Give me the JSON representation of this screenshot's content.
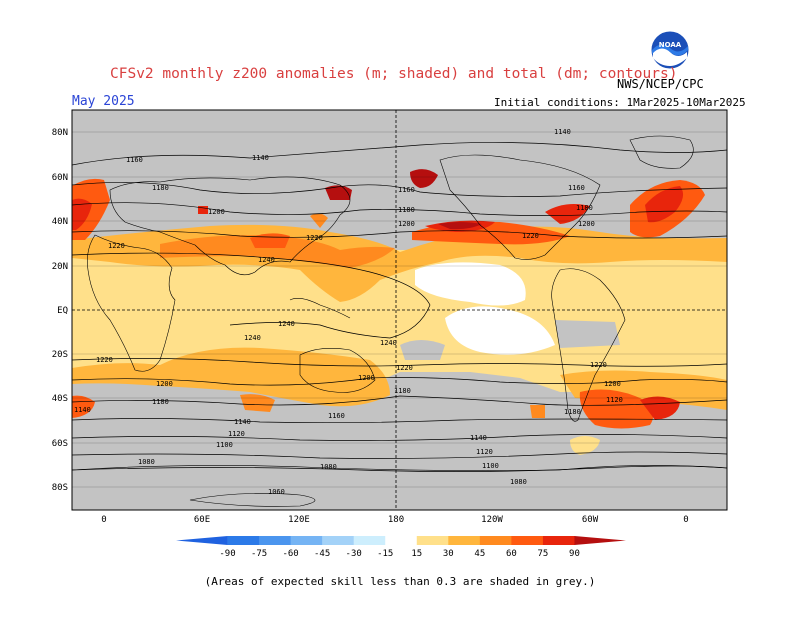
{
  "header": {
    "title": "CFSv2 monthly z200 anomalies (m; shaded) and total (dm; contours)",
    "valid_month": "May 2025",
    "organization": "NWS/NCEP/CPC",
    "initial_conditions": "Initial conditions: 1Mar2025-10Mar2025",
    "logo_text": "NOAA"
  },
  "chart_data": {
    "type": "heatmap",
    "lon_ticks": [
      "0",
      "60E",
      "120E",
      "180",
      "120W",
      "60W",
      "0"
    ],
    "lat_ticks": [
      "80N",
      "60N",
      "40N",
      "20N",
      "EQ",
      "20S",
      "40S",
      "60S",
      "80S"
    ],
    "colorbar": {
      "levels": [
        "-90",
        "-75",
        "-60",
        "-45",
        "-30",
        "-15",
        "15",
        "30",
        "45",
        "60",
        "75",
        "90"
      ],
      "colors": [
        "#1f62e0",
        "#2c7ae8",
        "#4b95ee",
        "#75b4f4",
        "#a3d2f8",
        "#cdeefd",
        "#ffffff",
        "#ffe08a",
        "#ffb63d",
        "#ff8a1f",
        "#ff5a10",
        "#e8250c",
        "#b50f0f"
      ]
    },
    "contour_labels": [
      "1140",
      "1160",
      "1180",
      "1200",
      "1220",
      "1240",
      "1120",
      "1100",
      "1080",
      "1060"
    ],
    "skill_mask_color": "#c3c3c3"
  },
  "footnote": "(Areas of expected skill less than 0.3 are shaded in grey.)"
}
